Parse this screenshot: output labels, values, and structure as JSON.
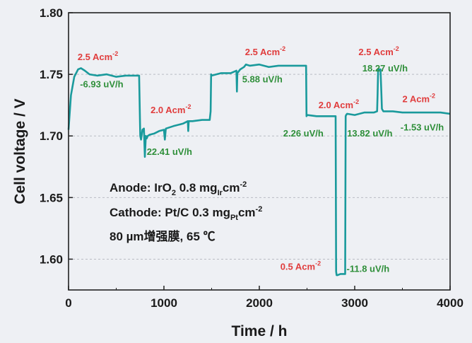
{
  "chart_data": {
    "type": "line",
    "title": "",
    "xlabel": "Time / h",
    "ylabel": "Cell voltage / V",
    "xlim": [
      0,
      4000
    ],
    "ylim": [
      1.575,
      1.8
    ],
    "xticks": [
      0,
      1000,
      2000,
      3000,
      4000
    ],
    "xtick_labels": [
      "0",
      "1000",
      "2000",
      "3000",
      "4000"
    ],
    "yticks": [
      1.6,
      1.65,
      1.7,
      1.75,
      1.8
    ],
    "ytick_labels": [
      "1.60",
      "1.65",
      "1.70",
      "1.75",
      "1.80"
    ],
    "grid": "horizontal dashed",
    "line_color": "#1a9a9c",
    "series": [
      {
        "name": "",
        "x": [
          0,
          25,
          60,
          100,
          130,
          170,
          220,
          300,
          400,
          500,
          600,
          700,
          740,
          752,
          760,
          775,
          790,
          800,
          810,
          820,
          830,
          850,
          900,
          950,
          1000,
          1010,
          1020,
          1100,
          1200,
          1250,
          1255,
          1260,
          1300,
          1400,
          1480,
          1490,
          1495,
          1500,
          1600,
          1700,
          1760,
          1765,
          1770,
          1800,
          1840,
          1860,
          1900,
          2000,
          2100,
          2200,
          2300,
          2400,
          2490,
          2495,
          2500,
          2600,
          2700,
          2800,
          2805,
          2810,
          2820,
          2850,
          2900,
          2905,
          2910,
          2920,
          3000,
          3100,
          3200,
          3235,
          3240,
          3245,
          3250,
          3270,
          3280,
          3285,
          3300,
          3400,
          3500,
          3600,
          3700,
          3800,
          3900,
          4000
        ],
        "y": [
          1.705,
          1.733,
          1.748,
          1.754,
          1.755,
          1.753,
          1.75,
          1.749,
          1.75,
          1.748,
          1.749,
          1.749,
          1.749,
          1.7,
          1.697,
          1.705,
          1.706,
          1.683,
          1.7,
          1.698,
          1.7,
          1.701,
          1.702,
          1.704,
          1.705,
          1.697,
          1.706,
          1.708,
          1.71,
          1.712,
          1.704,
          1.712,
          1.712,
          1.713,
          1.713,
          1.72,
          1.75,
          1.749,
          1.751,
          1.751,
          1.753,
          1.736,
          1.751,
          1.754,
          1.756,
          1.758,
          1.757,
          1.758,
          1.756,
          1.757,
          1.757,
          1.757,
          1.757,
          1.716,
          1.717,
          1.716,
          1.716,
          1.716,
          1.59,
          1.587,
          1.587,
          1.588,
          1.588,
          1.716,
          1.717,
          1.718,
          1.717,
          1.719,
          1.719,
          1.72,
          1.734,
          1.753,
          1.754,
          1.754,
          1.734,
          1.722,
          1.72,
          1.72,
          1.719,
          1.719,
          1.719,
          1.719,
          1.719,
          1.718
        ]
      }
    ],
    "annotations": [
      {
        "text": "2.5 Acm",
        "sup": "-2",
        "x": 95,
        "y": 1.7615,
        "color": "#e03c3c",
        "anchor": "start"
      },
      {
        "text": "-6.93 uV/h",
        "x": 120,
        "y": 1.7395,
        "color": "#2f8f3a",
        "anchor": "start"
      },
      {
        "text": "2.0 Acm",
        "sup": "-2",
        "x": 860,
        "y": 1.7185,
        "color": "#e03c3c",
        "anchor": "start"
      },
      {
        "text": "22.41 uV/h",
        "x": 820,
        "y": 1.6845,
        "color": "#2f8f3a",
        "anchor": "start"
      },
      {
        "text": "2.5 Acm",
        "sup": "-2",
        "x": 1850,
        "y": 1.7655,
        "color": "#e03c3c",
        "anchor": "start"
      },
      {
        "text": "5.88 uV/h",
        "x": 1820,
        "y": 1.7435,
        "color": "#2f8f3a",
        "anchor": "start"
      },
      {
        "text": "2.0 Acm",
        "sup": "-2",
        "x": 2620,
        "y": 1.7225,
        "color": "#e03c3c",
        "anchor": "start"
      },
      {
        "text": "2.26 uV/h",
        "x": 2250,
        "y": 1.6995,
        "color": "#2f8f3a",
        "anchor": "start"
      },
      {
        "text": "13.82 uV/h",
        "x": 2920,
        "y": 1.6995,
        "color": "#2f8f3a",
        "anchor": "start"
      },
      {
        "text": "2.5 Acm",
        "sup": "-2",
        "x": 3040,
        "y": 1.7655,
        "color": "#e03c3c",
        "anchor": "start"
      },
      {
        "text": "18.27 uV/h",
        "x": 3080,
        "y": 1.7525,
        "color": "#2f8f3a",
        "anchor": "start"
      },
      {
        "text": "2 Acm",
        "sup": "-2",
        "x": 3500,
        "y": 1.7275,
        "color": "#e03c3c",
        "anchor": "start"
      },
      {
        "text": "-1.53 uV/h",
        "x": 3480,
        "y": 1.7045,
        "color": "#2f8f3a",
        "anchor": "start"
      },
      {
        "text": "0.5 Acm",
        "sup": "-2",
        "x": 2220,
        "y": 1.5915,
        "color": "#e03c3c",
        "anchor": "start"
      },
      {
        "text": "-11.8 uV/h",
        "x": 2915,
        "y": 1.5895,
        "color": "#2f8f3a",
        "anchor": "start"
      }
    ],
    "conditions": {
      "anode_prefix": "Anode: IrO",
      "anode_sub": "2",
      "anode_mid": " 0.8 mg",
      "anode_sub2": "Ir",
      "anode_unit": "cm",
      "anode_sup": "-2",
      "cathode_prefix": "Cathode: Pt/C 0.3 mg",
      "cathode_sub": "Pt",
      "cathode_unit": "cm",
      "cathode_sup": "-2",
      "membrane": "80 µm增强膜, 65 ℃"
    }
  }
}
